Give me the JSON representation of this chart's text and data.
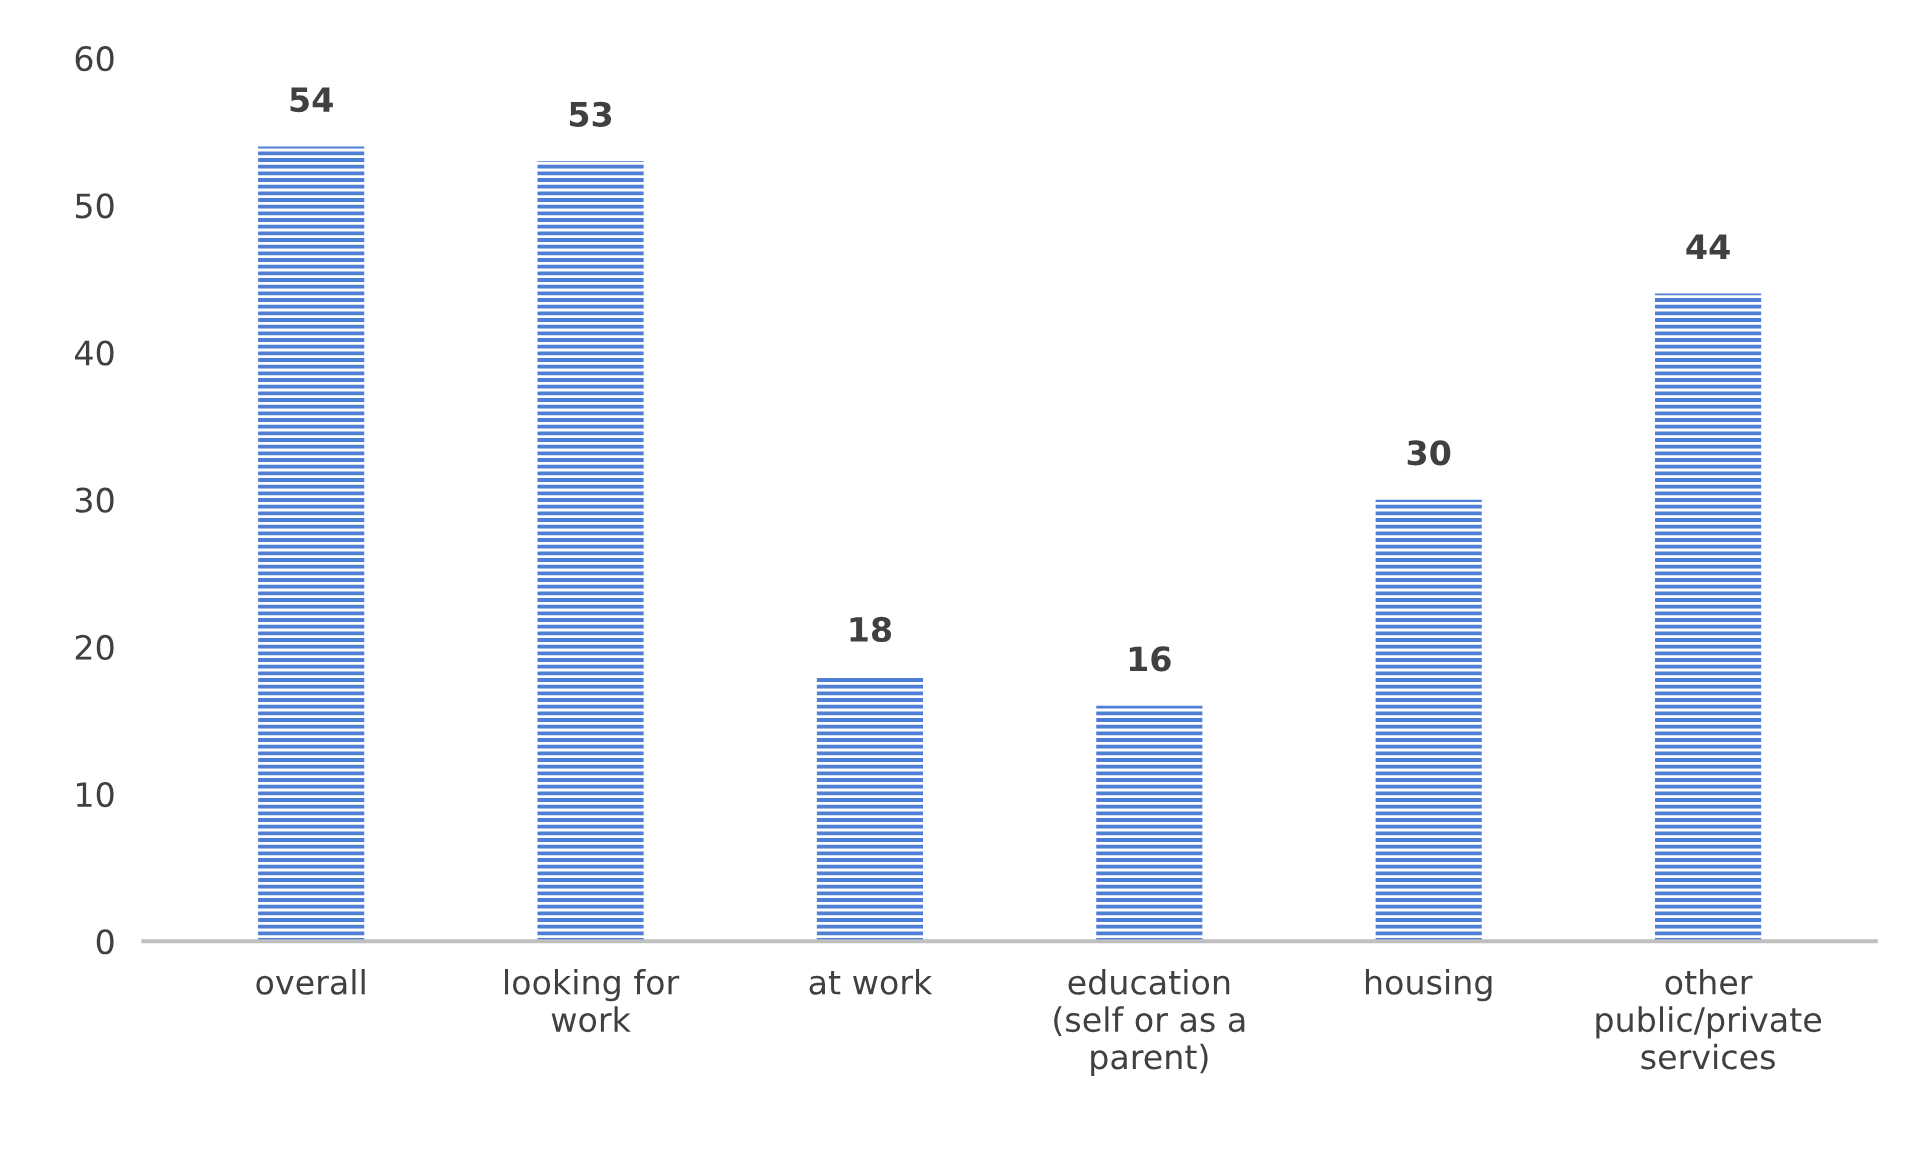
{
  "chart_data": {
    "type": "bar",
    "categories": [
      "overall",
      "looking for\nwork",
      "at work",
      "education\n(self or as a\nparent)",
      "housing",
      "other\npublic/private\nservices"
    ],
    "values": [
      54,
      53,
      18,
      16,
      30,
      44
    ],
    "color": "#4f7fd4",
    "ylim": [
      0,
      60
    ],
    "yticks": [
      0,
      10,
      20,
      30,
      40,
      50,
      60
    ],
    "data_labels": true,
    "grid": false,
    "legend": false
  }
}
